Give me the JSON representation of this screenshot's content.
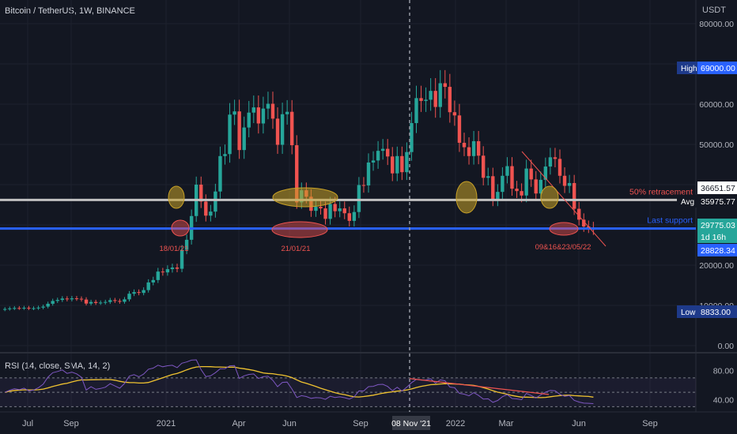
{
  "chart_title": "Bitcoin / TetherUS, 1W, BINANCE",
  "currency": "USDT",
  "rsi_title": "RSI (14, close, SMA, 14, 2)",
  "colors": {
    "bg": "#131722",
    "up": "#26a69a",
    "down": "#ef5350",
    "grid": "#1e222d",
    "rsi": "#7e57c2",
    "rsi_ma": "#f0c330",
    "support": "#2962ff",
    "retrace": "#c0c0c0"
  },
  "chart_data": {
    "type": "candlestick",
    "ylim": [
      0,
      80000
    ],
    "y_ticks": [
      "80000.00",
      "70000.00",
      "60000.00",
      "50000.00",
      "40000.00",
      "30000.00",
      "20000.00",
      "10000.00",
      "0.00"
    ],
    "x_ticks": [
      "Jul",
      "Sep",
      "2021",
      "Apr",
      "Jun",
      "Sep",
      "2022",
      "Mar",
      "Jun",
      "Sep"
    ],
    "crosshair_x_label": "08 Nov '21",
    "price_badges": [
      {
        "label": "High",
        "value": "69000.00"
      },
      {
        "label": "",
        "value": "36651.57"
      },
      {
        "label": "Avg",
        "value": "35975.77"
      },
      {
        "label": "",
        "value": "29775.03"
      },
      {
        "label": "",
        "value": "1d 16h"
      },
      {
        "label": "",
        "value": "28828.34"
      },
      {
        "label": "Low",
        "value": "8833.00"
      }
    ],
    "levels": [
      {
        "name": "50% retracement",
        "price": 36200
      },
      {
        "name": "Last support",
        "price": 29100
      }
    ],
    "annotations": [
      "18/01/21",
      "21/01/21",
      "09&16&23/05/22"
    ],
    "closes": [
      9100,
      9250,
      9350,
      9300,
      9400,
      9250,
      9300,
      9450,
      9700,
      10400,
      11100,
      11350,
      11700,
      11500,
      11750,
      11650,
      11450,
      10450,
      10850,
      10600,
      10700,
      10850,
      11300,
      11100,
      10900,
      11500,
      12900,
      13300,
      13100,
      13800,
      15700,
      16300,
      18400,
      18200,
      19000,
      19400,
      19100,
      23800,
      26300,
      32200,
      40000,
      35800,
      32300,
      33300,
      38300,
      47100,
      47600,
      57400,
      58200,
      48600,
      54200,
      57900,
      59200,
      55200,
      58900,
      60100,
      56400,
      49900,
      57500,
      58100,
      49800,
      35600,
      38600,
      37000,
      33500,
      34500,
      34100,
      31500,
      35200,
      33400,
      34100,
      32900,
      31000,
      33200,
      39900,
      39800,
      45500,
      46000,
      48400,
      48900,
      47000,
      42800,
      47100,
      43100,
      48100,
      55300,
      61500,
      60800,
      61100,
      63300,
      59300,
      65200,
      64300,
      58000,
      57200,
      50400,
      49300,
      47100,
      50800,
      47200,
      41700,
      42100,
      36300,
      38200,
      42200,
      44600,
      39000,
      38400,
      37300,
      44000,
      41300,
      37800,
      41200,
      44500,
      46800,
      46400,
      42200,
      39700,
      40400,
      34000,
      31300,
      29600,
      29300,
      28800
    ]
  }
}
